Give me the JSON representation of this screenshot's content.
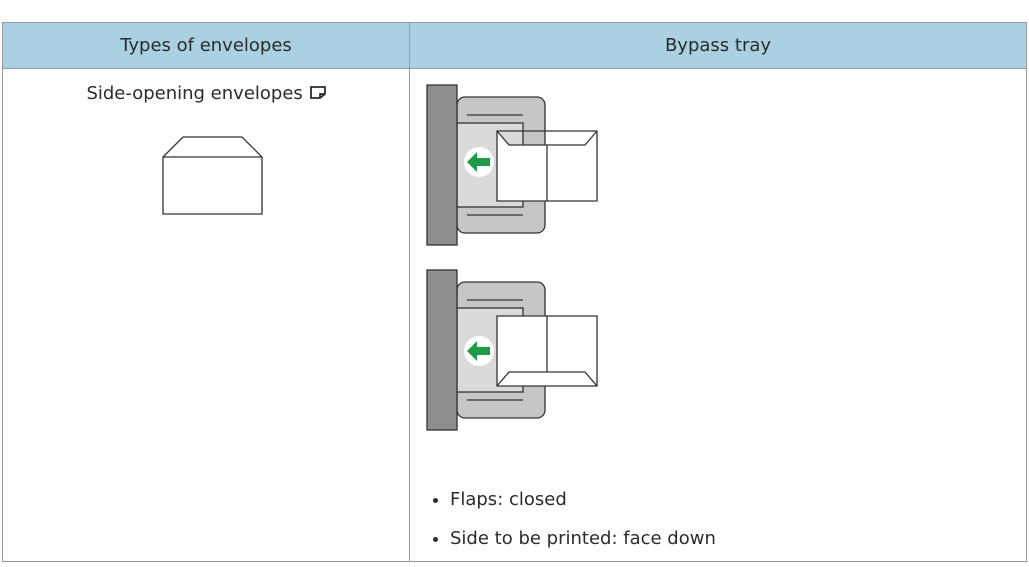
{
  "table": {
    "headers": [
      "Types of envelopes",
      "Bypass tray"
    ],
    "rows": [
      {
        "type": "Side-opening envelopes",
        "notes": [
          "Flaps: closed",
          "Side to be printed: face down"
        ]
      }
    ]
  }
}
